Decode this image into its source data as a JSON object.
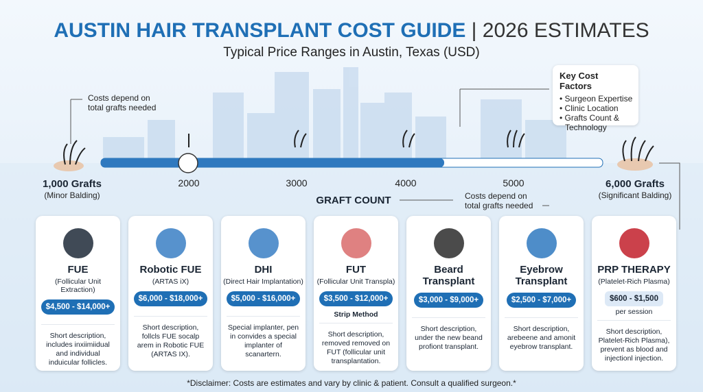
{
  "header": {
    "title_main": "AUSTIN HAIR TRANSPLANT COST GUIDE",
    "title_suffix": "| 2026 ESTIMATES",
    "subtitle": "Typical Price Ranges in Austin, Texas (USD)"
  },
  "notes": {
    "top_left": "Costs depend on total grafts needed",
    "bottom_right": "Costs depend on total grafts needed"
  },
  "key_factors": {
    "title": "Key Cost Factors",
    "items": [
      "Surgeon Expertise",
      "Clinic Location",
      "Grafts Count & Technology"
    ]
  },
  "slider": {
    "axis_label": "GRAFT COUNT",
    "start": {
      "label": "1,000 Grafts",
      "note": "(Minor Balding)"
    },
    "end": {
      "label": "6,000 Grafts",
      "note": "(Significant Balding)"
    },
    "ticks": [
      "2000",
      "3000",
      "4000",
      "5000"
    ]
  },
  "cards": [
    {
      "title": "FUE",
      "subtitle": "(Follicular Unit Extraction)",
      "price": "$4,500 - $14,000+",
      "description": "Short description, includes inxiimiidual and individual induicular follicles."
    },
    {
      "title": "Robotic FUE",
      "subtitle": "(ARTAS iX)",
      "price": "$6,000 - $18,000+",
      "description": "Short description, follcls FUE socalp arem in Robotic FUE (ARTAS IX)."
    },
    {
      "title": "DHI",
      "subtitle": "(Direct Hair Implantation)",
      "price": "$5,000 - $16,000+",
      "description": "Special implanter, pen in convides a special implanter of scanartern."
    },
    {
      "title": "FUT",
      "subtitle": "(Follicular Unit Transpla)",
      "price": "$3,500 - $12,000+",
      "extra": "Strip Method",
      "description": "Short description, removed removed on FUT (follicular unit transplantation."
    },
    {
      "title": "Beard Transplant",
      "price": "$3,000 - $9,000+",
      "description": "Short description, under the new beand profiont transplant."
    },
    {
      "title": "Eyebrow Transplant",
      "price": "$2,500 - $7,000+",
      "description": "Short description, arebeene and amonit eyebrow transplant."
    },
    {
      "title": "PRP THERAPY",
      "subtitle": "(Platelet-Rich Plasma)",
      "price": "$600 - $1,500",
      "extra": "per session",
      "description": "Short description, Platelet-Rich Plasma), prevent as blood and injectionl injection."
    }
  ],
  "disclaimer": "*Disclaimer: Costs are estimates and vary by clinic & patient. Consult a qualified surgeon.*"
}
